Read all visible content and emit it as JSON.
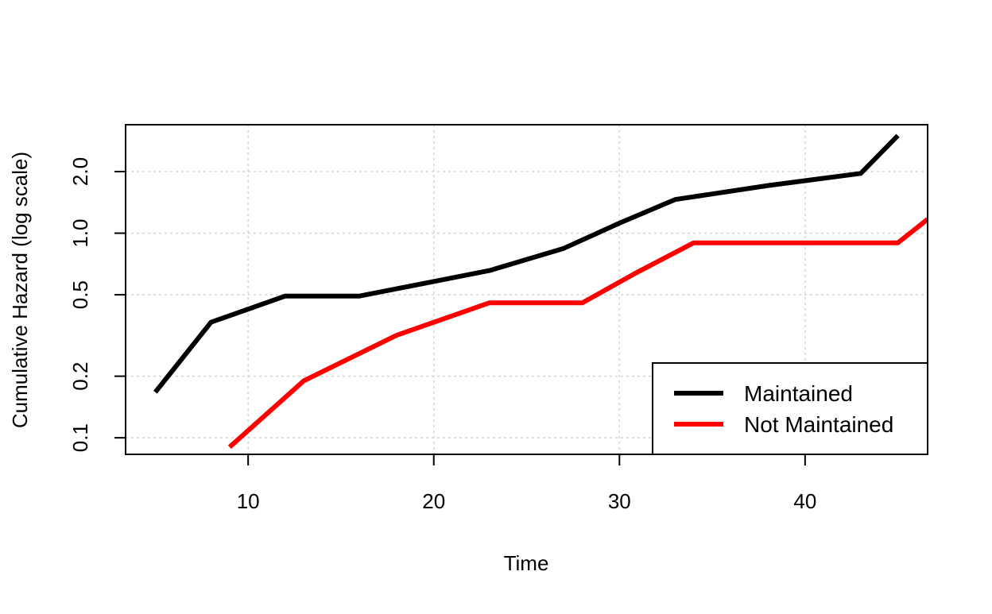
{
  "chart_data": {
    "type": "line",
    "xlabel": "Time",
    "ylabel": "Cumulative Hazard (log scale)",
    "xlim": [
      3.4,
      46.6
    ],
    "ylim": [
      0.083,
      3.39
    ],
    "y_scale": "log",
    "grid": true,
    "legend_position": "bottom-right",
    "x_ticks": [
      10,
      20,
      30,
      40
    ],
    "y_ticks": [
      0.1,
      0.2,
      0.5,
      1.0,
      2.0
    ],
    "x_tick_labels": [
      "10",
      "20",
      "30",
      "40"
    ],
    "y_tick_labels": [
      "0.1",
      "0.2",
      "0.5",
      "1.0",
      "2.0"
    ],
    "series": [
      {
        "name": "Maintained",
        "color": "#000000",
        "x": [
          5,
          8,
          12,
          16,
          23,
          27,
          30,
          33,
          38,
          43,
          45
        ],
        "y": [
          0.167,
          0.367,
          0.493,
          0.493,
          0.657,
          0.843,
          1.12,
          1.46,
          1.71,
          1.96,
          3.0
        ]
      },
      {
        "name": "Not Maintained",
        "color": "#ff0000",
        "x": [
          9,
          13,
          18,
          23,
          28,
          31,
          34,
          45,
          46.6
        ],
        "y": [
          0.09,
          0.19,
          0.317,
          0.457,
          0.457,
          0.647,
          0.897,
          0.897,
          1.17
        ]
      }
    ]
  }
}
